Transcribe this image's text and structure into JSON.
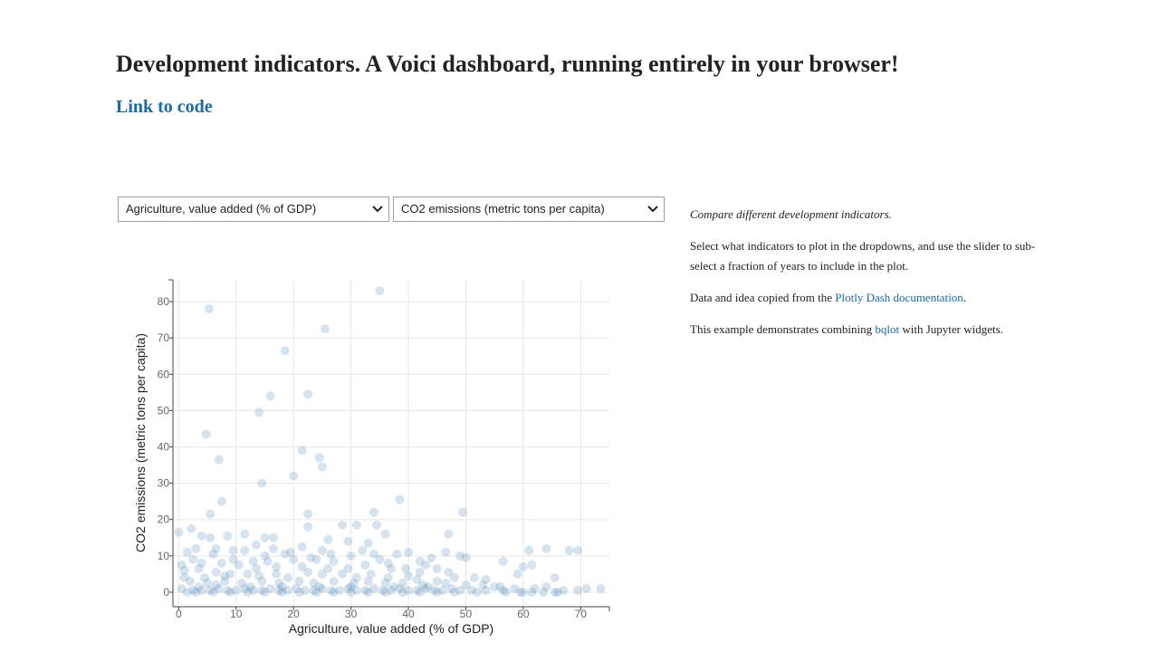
{
  "page": {
    "title": "Development indicators. A Voici dashboard, running entirely in your browser!",
    "code_link": "Link to code"
  },
  "controls": {
    "x_select": {
      "selected": "Agriculture, value added (% of GDP)"
    },
    "y_select": {
      "selected": "CO2 emissions (metric tons per capita)"
    }
  },
  "info": {
    "intro": "Compare different development indicators.",
    "instructions": "Select what indicators to plot in the dropdowns, and use the slider to sub-select a fraction of years to include in the plot.",
    "source_prefix": "Data and idea copied from the ",
    "source_link": "Plotly Dash documentation",
    "source_suffix": ".",
    "combine_prefix": "This example demonstrates combining ",
    "combine_link": "bqlot",
    "combine_suffix": " with Jupyter widgets."
  },
  "colors": {
    "marker": "#3274a8",
    "grid": "#e8e8e8",
    "axis": "#444444",
    "tick_text": "#666666",
    "link": "#1a6aa4"
  },
  "chart_data": {
    "type": "scatter",
    "xlabel": "Agriculture, value added (% of GDP)",
    "ylabel": "CO2 emissions (metric tons per capita)",
    "xlim": [
      -1,
      75
    ],
    "ylim": [
      -4,
      86
    ],
    "xticks": [
      0,
      10,
      20,
      30,
      40,
      50,
      60,
      70
    ],
    "yticks": [
      0,
      10,
      20,
      30,
      40,
      50,
      60,
      70,
      80
    ],
    "grid": true,
    "marker_opacity": 0.2,
    "points": [
      [
        35,
        83
      ],
      [
        5.3,
        78
      ],
      [
        25.5,
        72.5
      ],
      [
        18.5,
        66.5
      ],
      [
        22.5,
        54.5
      ],
      [
        16,
        54
      ],
      [
        14,
        49.5
      ],
      [
        4.8,
        43.5
      ],
      [
        21.5,
        39
      ],
      [
        24.5,
        37
      ],
      [
        7,
        36.5
      ],
      [
        25,
        34.5
      ],
      [
        20,
        32
      ],
      [
        14.5,
        30
      ],
      [
        38.5,
        25.5
      ],
      [
        7.5,
        25
      ],
      [
        5.5,
        21.5
      ],
      [
        22.5,
        21.5
      ],
      [
        34,
        22
      ],
      [
        49.5,
        22
      ],
      [
        2.2,
        17.5
      ],
      [
        0,
        16.5
      ],
      [
        11.5,
        16
      ],
      [
        8.5,
        15.5
      ],
      [
        15,
        15
      ],
      [
        16.5,
        15
      ],
      [
        36,
        16
      ],
      [
        47,
        16
      ],
      [
        5.5,
        15
      ],
      [
        4,
        15.5
      ],
      [
        22.5,
        18
      ],
      [
        28.5,
        18.5
      ],
      [
        31,
        18.5
      ],
      [
        34.5,
        18.5
      ],
      [
        26,
        14.5
      ],
      [
        29.5,
        14
      ],
      [
        33,
        13.5
      ],
      [
        13.5,
        13
      ],
      [
        16.5,
        12
      ],
      [
        21.5,
        12.5
      ],
      [
        25,
        11.5
      ],
      [
        9.5,
        11.5
      ],
      [
        1.5,
        11
      ],
      [
        3,
        12
      ],
      [
        6.5,
        12
      ],
      [
        11.5,
        11.5
      ],
      [
        18.5,
        10.5
      ],
      [
        32,
        11.5
      ],
      [
        34,
        10.5
      ],
      [
        38,
        10.5
      ],
      [
        40,
        11
      ],
      [
        46.5,
        11
      ],
      [
        49,
        10
      ],
      [
        61,
        11.5
      ],
      [
        64,
        12
      ],
      [
        68,
        11.5
      ],
      [
        69.5,
        11.5
      ],
      [
        56.5,
        8.5
      ],
      [
        60,
        7
      ],
      [
        61.5,
        7.5
      ],
      [
        43,
        7.5
      ],
      [
        45,
        6.5
      ],
      [
        42,
        8.5
      ],
      [
        39.5,
        6.5
      ],
      [
        36.5,
        8
      ],
      [
        27,
        8.5
      ],
      [
        24,
        9
      ],
      [
        20,
        9
      ],
      [
        15.5,
        8.5
      ],
      [
        13,
        8.5
      ],
      [
        10.5,
        7.5
      ],
      [
        7.5,
        8
      ],
      [
        4,
        8
      ],
      [
        0.5,
        7.5
      ],
      [
        1,
        6
      ],
      [
        3.5,
        6.5
      ],
      [
        6.5,
        5.5
      ],
      [
        9,
        5
      ],
      [
        12,
        5
      ],
      [
        14,
        4.5
      ],
      [
        17,
        5
      ],
      [
        19,
        4
      ],
      [
        22.5,
        5.5
      ],
      [
        25,
        5
      ],
      [
        28.5,
        5
      ],
      [
        31,
        4
      ],
      [
        33.5,
        5
      ],
      [
        36.5,
        4
      ],
      [
        40,
        4.5
      ],
      [
        41.5,
        3.5
      ],
      [
        45,
        3
      ],
      [
        48,
        4
      ],
      [
        51.5,
        4
      ],
      [
        53.5,
        3.5
      ],
      [
        65.5,
        4
      ],
      [
        2,
        3
      ],
      [
        5,
        2.5
      ],
      [
        8,
        3
      ],
      [
        11,
        2.5
      ],
      [
        14.5,
        3
      ],
      [
        17.5,
        2.5
      ],
      [
        21,
        3
      ],
      [
        23.5,
        2.5
      ],
      [
        27,
        3
      ],
      [
        30.5,
        2.5
      ],
      [
        33,
        3
      ],
      [
        36,
        2.5
      ],
      [
        39,
        2.5
      ],
      [
        42.5,
        2
      ],
      [
        46.5,
        2.5
      ],
      [
        50,
        2
      ],
      [
        53,
        2
      ],
      [
        56,
        1.5
      ],
      [
        58.5,
        1
      ],
      [
        62,
        1
      ],
      [
        0.5,
        1
      ],
      [
        2.5,
        0.5
      ],
      [
        4,
        0.5
      ],
      [
        5.5,
        0.5
      ],
      [
        7,
        1
      ],
      [
        8.5,
        0.5
      ],
      [
        10,
        0.5
      ],
      [
        11.5,
        1
      ],
      [
        13,
        0.5
      ],
      [
        14.5,
        0.5
      ],
      [
        16,
        1
      ],
      [
        17.5,
        0.5
      ],
      [
        19,
        0.5
      ],
      [
        20.5,
        1
      ],
      [
        22,
        0.5
      ],
      [
        23.5,
        0.5
      ],
      [
        25,
        1
      ],
      [
        26.5,
        0.5
      ],
      [
        28,
        0.5
      ],
      [
        29.5,
        1
      ],
      [
        31,
        0.5
      ],
      [
        32.5,
        0.5
      ],
      [
        34,
        1
      ],
      [
        35.5,
        0.5
      ],
      [
        37,
        0.5
      ],
      [
        38.5,
        1
      ],
      [
        40,
        0.5
      ],
      [
        41.5,
        0.5
      ],
      [
        43,
        1
      ],
      [
        44.5,
        0.5
      ],
      [
        46,
        0.5
      ],
      [
        47.5,
        1
      ],
      [
        49,
        0.5
      ],
      [
        51,
        0.5
      ],
      [
        53.5,
        0.5
      ],
      [
        56.5,
        0.5
      ],
      [
        59.5,
        0
      ],
      [
        61.5,
        0
      ],
      [
        63.5,
        0
      ],
      [
        65.5,
        0
      ],
      [
        67,
        0.5
      ],
      [
        69.5,
        0.5
      ],
      [
        71,
        1
      ],
      [
        73.5,
        1
      ],
      [
        1.5,
        0
      ],
      [
        3,
        0
      ],
      [
        6,
        0
      ],
      [
        9,
        0
      ],
      [
        12,
        0
      ],
      [
        15,
        0
      ],
      [
        18,
        0
      ],
      [
        21,
        0
      ],
      [
        24,
        0
      ],
      [
        27,
        0
      ],
      [
        30,
        0
      ],
      [
        33,
        0
      ],
      [
        36,
        0
      ],
      [
        39,
        0
      ],
      [
        42,
        0
      ],
      [
        45,
        0
      ],
      [
        48,
        0
      ],
      [
        52,
        0
      ],
      [
        57,
        0
      ],
      [
        60,
        0
      ],
      [
        66,
        0
      ],
      [
        3.5,
        1.5
      ],
      [
        6.5,
        2
      ],
      [
        12.5,
        1.5
      ],
      [
        18,
        1.5
      ],
      [
        24.5,
        1.5
      ],
      [
        30,
        1.5
      ],
      [
        37.5,
        1.5
      ],
      [
        43.5,
        1.5
      ],
      [
        55,
        1.5
      ],
      [
        64,
        1.5
      ],
      [
        1,
        4
      ],
      [
        4.5,
        4
      ],
      [
        8,
        4.5
      ],
      [
        13.5,
        6.5
      ],
      [
        17,
        7
      ],
      [
        21.5,
        7
      ],
      [
        26,
        6.5
      ],
      [
        29.5,
        6.5
      ],
      [
        32.5,
        7.5
      ],
      [
        37,
        6.5
      ],
      [
        42,
        5.5
      ],
      [
        47,
        5.5
      ],
      [
        59,
        5
      ],
      [
        2.5,
        9
      ],
      [
        6,
        10.5
      ],
      [
        9.5,
        9
      ],
      [
        15,
        10
      ],
      [
        19.5,
        11
      ],
      [
        23,
        9.5
      ],
      [
        26.5,
        10.5
      ],
      [
        30,
        10
      ],
      [
        35,
        9
      ],
      [
        44,
        9.5
      ],
      [
        50,
        9.5
      ]
    ]
  }
}
